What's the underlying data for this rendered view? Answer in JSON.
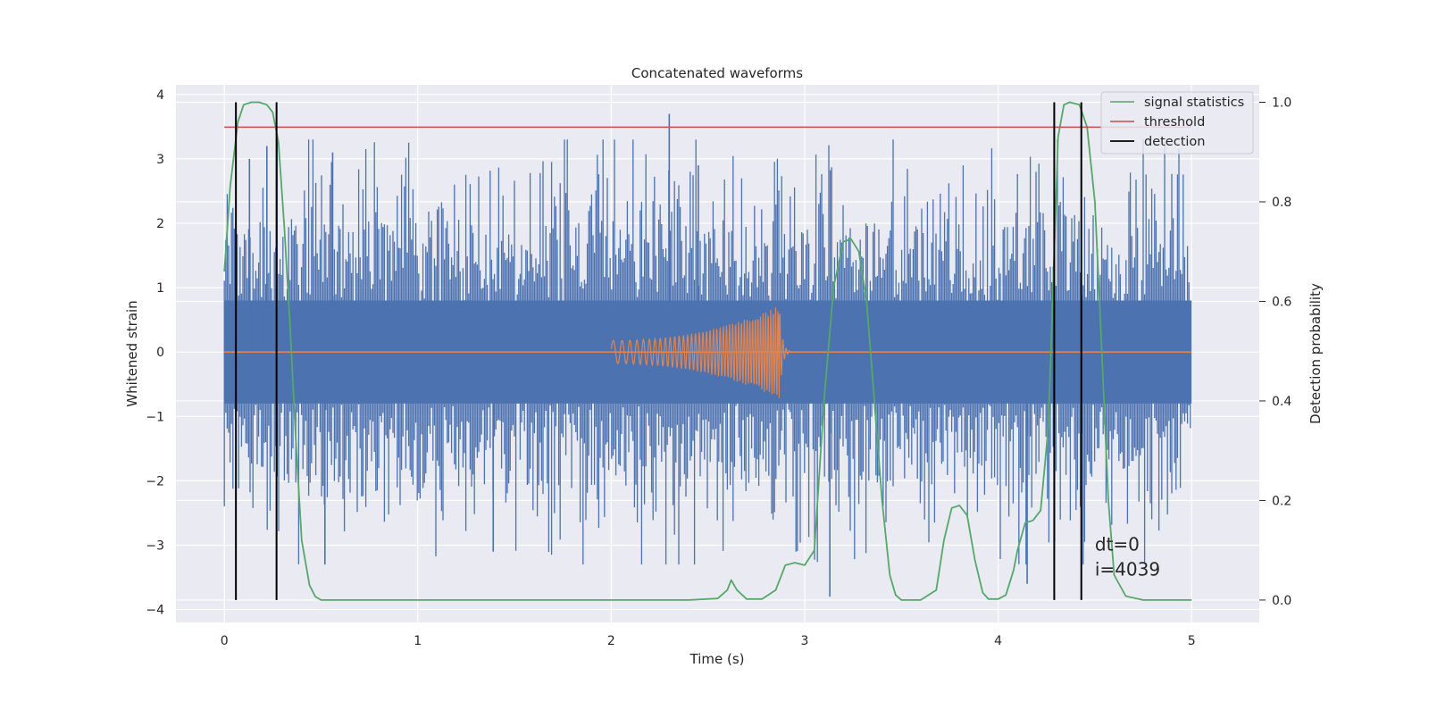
{
  "chart_data": {
    "type": "line",
    "title": "Concatenated waveforms",
    "xlabel": "Time (s)",
    "ylabel": "Whitened strain",
    "y2label": "Detection probability",
    "xlim": [
      -0.25,
      5.35
    ],
    "ylim": [
      -4.2,
      4.15
    ],
    "y2lim": [
      -0.045,
      1.035
    ],
    "xticks": [
      0,
      1,
      2,
      3,
      4,
      5
    ],
    "yticks": [
      -4,
      -3,
      -2,
      -1,
      0,
      1,
      2,
      3,
      4
    ],
    "y2ticks": [
      0.0,
      0.2,
      0.4,
      0.6,
      0.8,
      1.0
    ],
    "grid": true,
    "legend_position": "upper-right",
    "legend": [
      "signal statistics",
      "threshold",
      "detection"
    ],
    "colors": {
      "background": "#eaeaf2",
      "grid": "#ffffff",
      "strain": "#4c72b0",
      "template": "#dd8452",
      "signal_statistics": "#55a868",
      "threshold": "#c44e52",
      "detection": "#000000"
    },
    "series": [
      {
        "role": "strain",
        "description": "whitened noisy strain, white-noise-like band spanning the whole time range",
        "x_range": [
          0,
          5
        ],
        "core_band": [
          -0.8,
          0.8
        ],
        "peak_max": 3.7,
        "peak_min": -3.8
      },
      {
        "role": "template",
        "description": "chirp waveform rising in amplitude until merger",
        "x_range": [
          0,
          5
        ],
        "chirp_start": 2.0,
        "merger": 2.87,
        "start_amplitude": 0.18,
        "peak_amplitude": 0.72
      },
      {
        "name": "signal statistics",
        "axis": "right",
        "x": [
          0,
          0.03,
          0.07,
          0.1,
          0.14,
          0.18,
          0.22,
          0.25,
          0.28,
          0.31,
          0.34,
          0.37,
          0.4,
          0.44,
          0.47,
          0.5,
          0.55,
          1.0,
          1.5,
          2.0,
          2.4,
          2.55,
          2.6,
          2.62,
          2.65,
          2.7,
          2.78,
          2.85,
          2.9,
          2.95,
          3.0,
          3.05,
          3.1,
          3.15,
          3.2,
          3.24,
          3.28,
          3.32,
          3.36,
          3.4,
          3.44,
          3.47,
          3.5,
          3.6,
          3.68,
          3.72,
          3.76,
          3.8,
          3.84,
          3.88,
          3.92,
          3.95,
          4.0,
          4.04,
          4.08,
          4.1,
          4.14,
          4.18,
          4.22,
          4.26,
          4.29,
          4.31,
          4.34,
          4.37,
          4.42,
          4.46,
          4.5,
          4.53,
          4.57,
          4.6,
          4.66,
          4.75,
          4.85,
          5.0
        ],
        "y": [
          0.66,
          0.83,
          0.96,
          0.995,
          1.0,
          1.0,
          0.995,
          0.98,
          0.92,
          0.75,
          0.55,
          0.32,
          0.12,
          0.03,
          0.007,
          0.0,
          0.0,
          0.0,
          0.0,
          0.0,
          0.0,
          0.003,
          0.02,
          0.04,
          0.02,
          0.002,
          0.002,
          0.02,
          0.07,
          0.075,
          0.07,
          0.1,
          0.4,
          0.63,
          0.72,
          0.725,
          0.7,
          0.6,
          0.4,
          0.2,
          0.05,
          0.01,
          0.0,
          0.0,
          0.02,
          0.12,
          0.185,
          0.19,
          0.17,
          0.08,
          0.015,
          0.002,
          0.002,
          0.01,
          0.06,
          0.1,
          0.155,
          0.16,
          0.18,
          0.35,
          0.7,
          0.93,
          0.995,
          1.0,
          0.995,
          0.95,
          0.8,
          0.55,
          0.2,
          0.05,
          0.008,
          0.0,
          0.0,
          0.0
        ]
      },
      {
        "name": "threshold",
        "axis": "right",
        "x": [
          0,
          5
        ],
        "y": [
          0.95,
          0.95
        ]
      },
      {
        "name": "detection",
        "axis": "right",
        "type": "vlines",
        "x": [
          0.06,
          0.27,
          4.29,
          4.43
        ],
        "ymin": 0.0,
        "ymax": 1.0
      }
    ],
    "annotation": {
      "lines": [
        "dt=0",
        "i=4039"
      ],
      "x": 4.5,
      "y": -3.0
    }
  }
}
